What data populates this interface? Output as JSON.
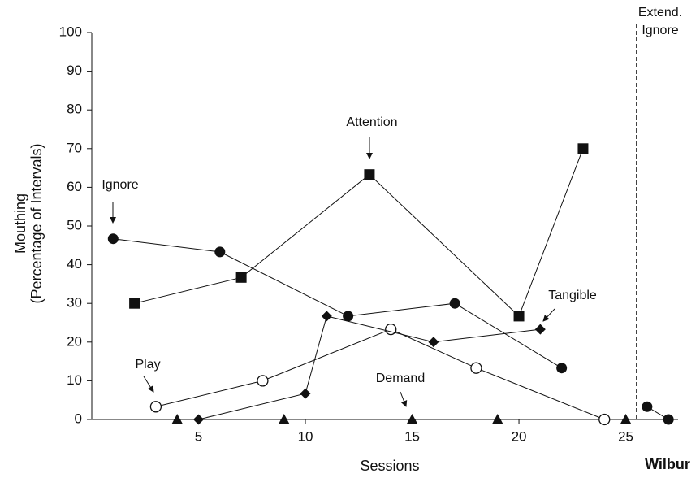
{
  "chart_data": {
    "type": "scatter",
    "x_label": "Sessions",
    "y_label": [
      "Mouthing",
      "(Percentage of Intervals)"
    ],
    "participant": "Wilbur",
    "phase_label": [
      "Extend.",
      "Ignore"
    ],
    "phase_line_x": 25.5,
    "xlim": [
      0,
      27.45
    ],
    "xticks": [
      5,
      10,
      15,
      20,
      25
    ],
    "ylim": [
      0,
      100
    ],
    "yticks": [
      0,
      10,
      20,
      30,
      40,
      50,
      60,
      70,
      80,
      90,
      100
    ],
    "series": [
      {
        "name": "Ignore",
        "marker": "circle-filled",
        "connect": true,
        "x": [
          1,
          6,
          12,
          17,
          22
        ],
        "values": [
          46.7,
          43.3,
          26.7,
          30,
          13.3
        ]
      },
      {
        "name": "Attention",
        "marker": "square",
        "connect": true,
        "x": [
          2,
          7,
          13,
          20,
          23
        ],
        "values": [
          30,
          36.7,
          63.3,
          26.7,
          70
        ]
      },
      {
        "name": "Play",
        "marker": "circle-open",
        "connect": true,
        "x": [
          3,
          8,
          14,
          18,
          24
        ],
        "values": [
          3.3,
          10,
          23.3,
          13.3,
          0
        ]
      },
      {
        "name": "Tangible",
        "marker": "diamond",
        "connect": true,
        "x": [
          5,
          10,
          11,
          16,
          21
        ],
        "values": [
          0,
          6.7,
          26.7,
          20,
          23.3
        ]
      },
      {
        "name": "Demand",
        "marker": "triangle",
        "connect": false,
        "x": [
          4,
          9,
          15,
          19,
          25
        ],
        "values": [
          0,
          0,
          0,
          0,
          0
        ]
      },
      {
        "marker": "circle-filled",
        "connect": true,
        "x": [
          26,
          27
        ],
        "values": [
          3.3,
          0
        ]
      }
    ]
  }
}
